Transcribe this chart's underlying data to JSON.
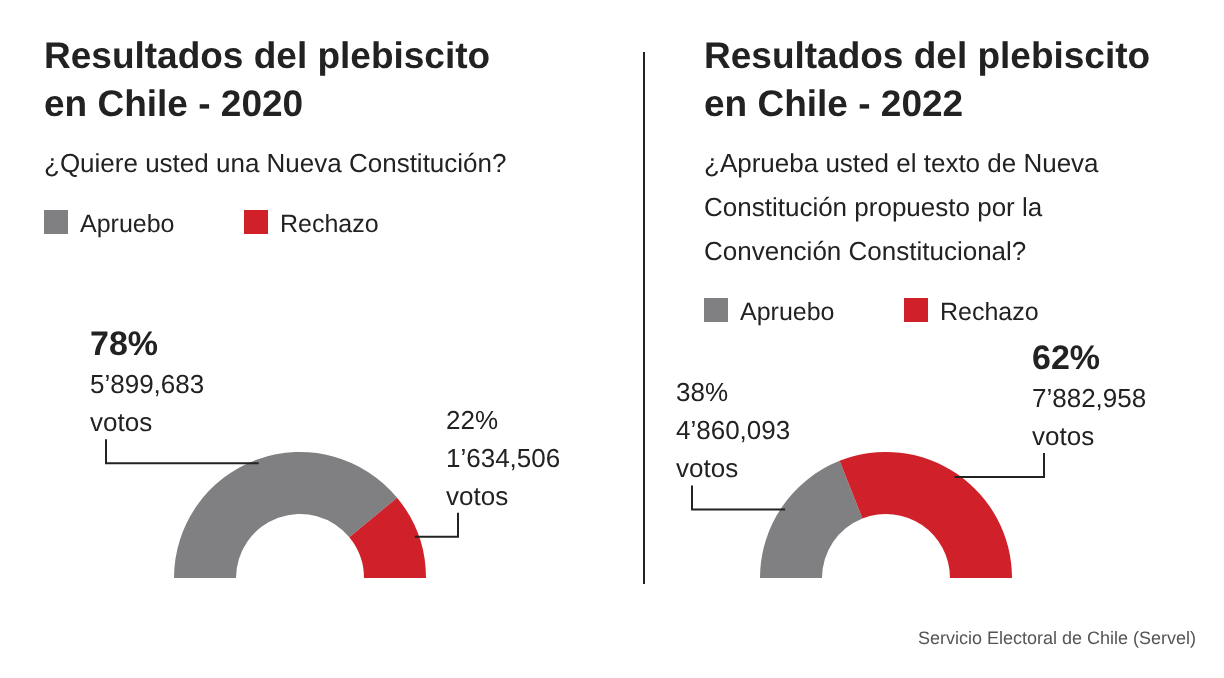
{
  "chart_data": [
    {
      "type": "donut",
      "title": "Resultados del plebiscito\nen Chile - 2020",
      "subtitle": "¿Quiere usted una Nueva Constitución?",
      "categories": [
        "Apruebo",
        "Rechazo"
      ],
      "values": [
        78,
        22
      ],
      "colors": [
        "#808083",
        "#d0202a"
      ],
      "value_labels": [
        "78%\n5’899,683\nvotos",
        "22%\n1’634,506\nvotos"
      ],
      "legend": "top left"
    },
    {
      "type": "donut",
      "title": "Resultados del plebiscito\nen Chile - 2022",
      "subtitle": "¿Aprueba usted el texto de Nueva\nConstitución propuesto por la\nConvención Constitucional?",
      "categories": [
        "Apruebo",
        "Rechazo"
      ],
      "values": [
        38,
        62
      ],
      "colors": [
        "#808083",
        "#d0202a"
      ],
      "value_labels": [
        "38%\n4’860,093\nvotos",
        "62%\n7’882,958\nvotos"
      ],
      "legend": "top left",
      "annotations": [
        "Servicio Electoral de Chile (Servel)"
      ]
    }
  ]
}
